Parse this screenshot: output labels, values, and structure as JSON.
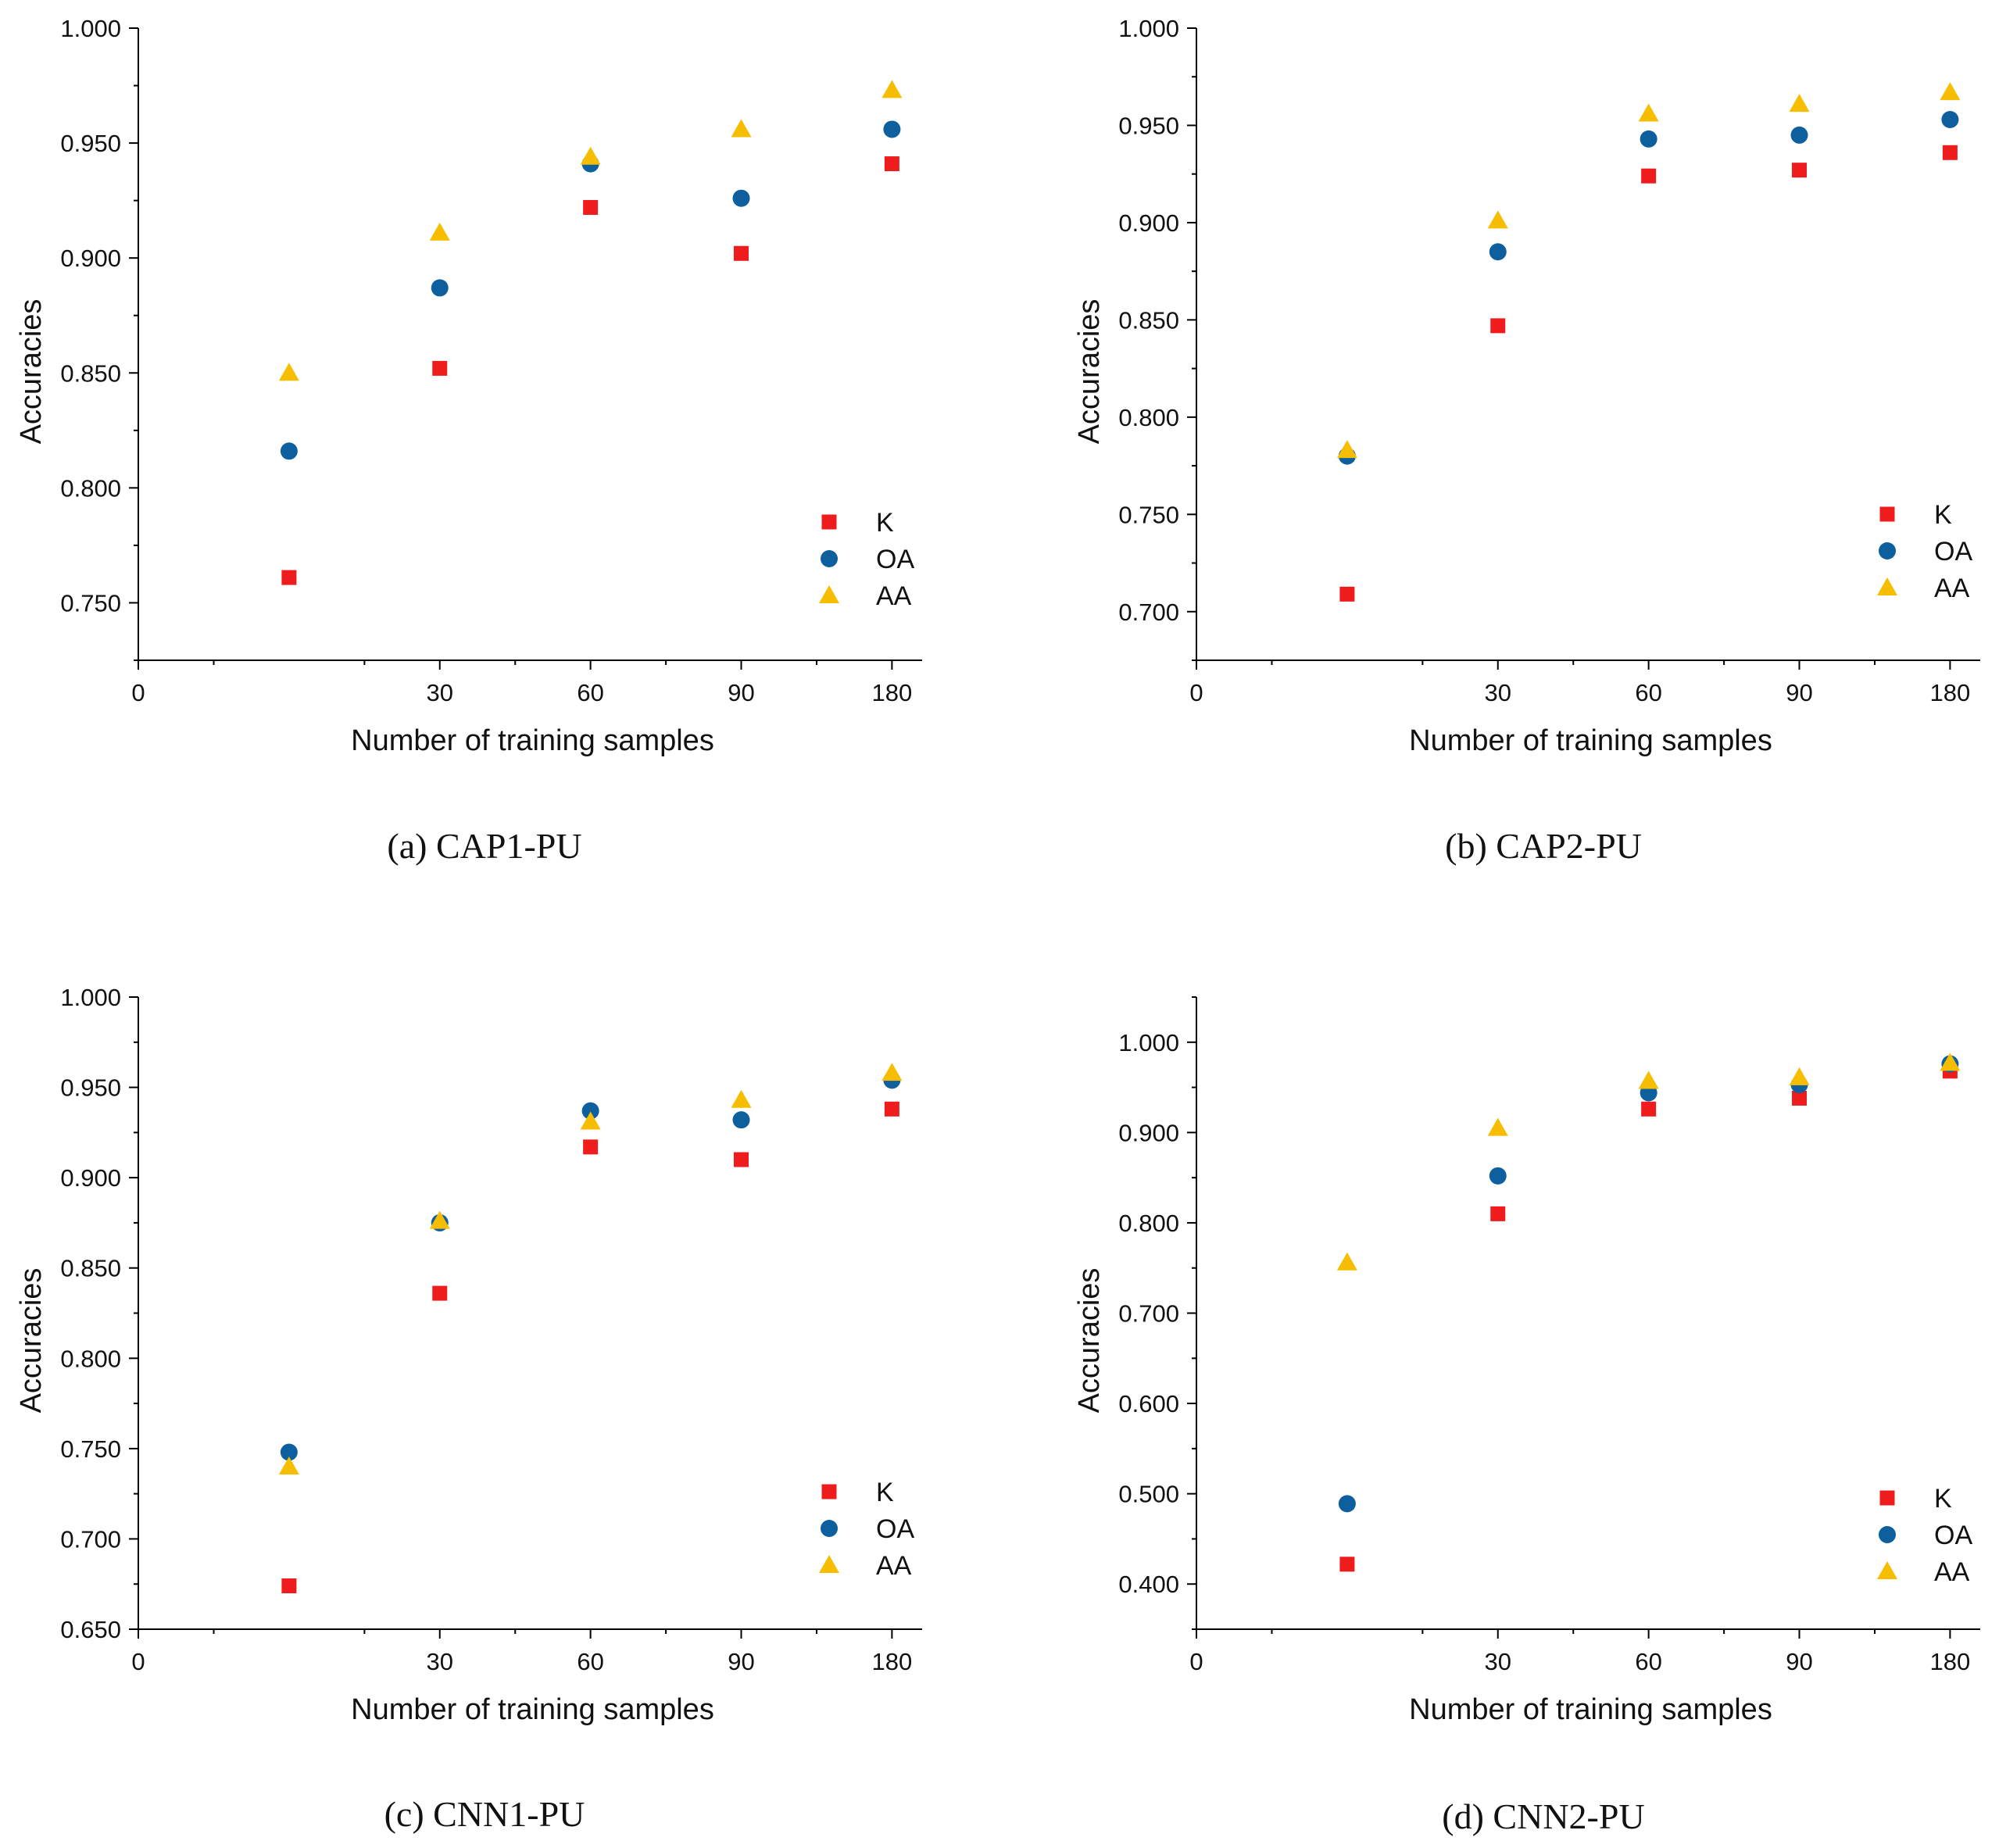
{
  "colors": {
    "K": "#ee1c1c",
    "OA": "#0e5f9e",
    "AA": "#f7bd00"
  },
  "chart_data": [
    {
      "type": "scatter",
      "caption": "(a) CAP1-PU",
      "xlabel": "Number of training samples",
      "ylabel": "Accuracies",
      "x_ticks": [
        "0",
        "30",
        "60",
        "90",
        "180"
      ],
      "y_ticks": [
        "0.750",
        "0.800",
        "0.850",
        "0.900",
        "0.950",
        "1.000"
      ],
      "ylim": [
        0.725,
        1.0
      ],
      "legend_position": "bottom-right",
      "grid": false,
      "series": [
        {
          "name": "K",
          "marker": "square",
          "x": [
            "15",
            "30",
            "60",
            "90",
            "180"
          ],
          "y": [
            0.761,
            0.852,
            0.922,
            0.902,
            0.941
          ]
        },
        {
          "name": "OA",
          "marker": "circle",
          "x": [
            "15",
            "30",
            "60",
            "90",
            "180"
          ],
          "y": [
            0.816,
            0.887,
            0.941,
            0.926,
            0.956
          ]
        },
        {
          "name": "AA",
          "marker": "triangle",
          "x": [
            "15",
            "30",
            "60",
            "90",
            "180"
          ],
          "y": [
            0.85,
            0.911,
            0.944,
            0.956,
            0.973
          ]
        }
      ]
    },
    {
      "type": "scatter",
      "caption": "(b) CAP2-PU",
      "xlabel": "Number of training samples",
      "ylabel": "Accuracies",
      "x_ticks": [
        "0",
        "30",
        "60",
        "90",
        "180"
      ],
      "y_ticks": [
        "0.700",
        "0.750",
        "0.800",
        "0.850",
        "0.900",
        "0.950",
        "1.000"
      ],
      "ylim": [
        0.675,
        1.0
      ],
      "legend_position": "bottom-right",
      "grid": false,
      "series": [
        {
          "name": "K",
          "marker": "square",
          "x": [
            "15",
            "30",
            "60",
            "90",
            "180"
          ],
          "y": [
            0.709,
            0.847,
            0.924,
            0.927,
            0.936
          ]
        },
        {
          "name": "OA",
          "marker": "circle",
          "x": [
            "15",
            "30",
            "60",
            "90",
            "180"
          ],
          "y": [
            0.78,
            0.885,
            0.943,
            0.945,
            0.953
          ]
        },
        {
          "name": "AA",
          "marker": "triangle",
          "x": [
            "15",
            "30",
            "60",
            "90",
            "180"
          ],
          "y": [
            0.783,
            0.901,
            0.956,
            0.961,
            0.967
          ]
        }
      ]
    },
    {
      "type": "scatter",
      "caption": "(c) CNN1-PU",
      "xlabel": "Number of training samples",
      "ylabel": "Accuracies",
      "x_ticks": [
        "0",
        "30",
        "60",
        "90",
        "180"
      ],
      "y_ticks": [
        "0.650",
        "0.700",
        "0.750",
        "0.800",
        "0.850",
        "0.900",
        "0.950",
        "1.000"
      ],
      "ylim": [
        0.65,
        1.0
      ],
      "legend_position": "bottom-right",
      "grid": false,
      "series": [
        {
          "name": "K",
          "marker": "square",
          "x": [
            "15",
            "30",
            "60",
            "90",
            "180"
          ],
          "y": [
            0.674,
            0.836,
            0.917,
            0.91,
            0.938
          ]
        },
        {
          "name": "OA",
          "marker": "circle",
          "x": [
            "15",
            "30",
            "60",
            "90",
            "180"
          ],
          "y": [
            0.748,
            0.875,
            0.937,
            0.932,
            0.954
          ]
        },
        {
          "name": "AA",
          "marker": "triangle",
          "x": [
            "15",
            "30",
            "60",
            "90",
            "180"
          ],
          "y": [
            0.74,
            0.876,
            0.931,
            0.943,
            0.958
          ]
        }
      ]
    },
    {
      "type": "scatter",
      "caption": "(d) CNN2-PU",
      "xlabel": "Number of training samples",
      "ylabel": "Accuracies",
      "x_ticks": [
        "0",
        "30",
        "60",
        "90",
        "180"
      ],
      "y_ticks": [
        "0.400",
        "0.500",
        "0.600",
        "0.700",
        "0.800",
        "0.900",
        "1.000"
      ],
      "ylim": [
        0.35,
        1.05
      ],
      "legend_position": "bottom-right",
      "grid": false,
      "series": [
        {
          "name": "K",
          "marker": "square",
          "x": [
            "15",
            "30",
            "60",
            "90",
            "180"
          ],
          "y": [
            0.422,
            0.81,
            0.926,
            0.938,
            0.968
          ]
        },
        {
          "name": "OA",
          "marker": "circle",
          "x": [
            "15",
            "30",
            "60",
            "90",
            "180"
          ],
          "y": [
            0.489,
            0.852,
            0.944,
            0.953,
            0.976
          ]
        },
        {
          "name": "AA",
          "marker": "triangle",
          "x": [
            "15",
            "30",
            "60",
            "90",
            "180"
          ],
          "y": [
            0.756,
            0.905,
            0.957,
            0.961,
            0.977
          ]
        }
      ]
    }
  ]
}
